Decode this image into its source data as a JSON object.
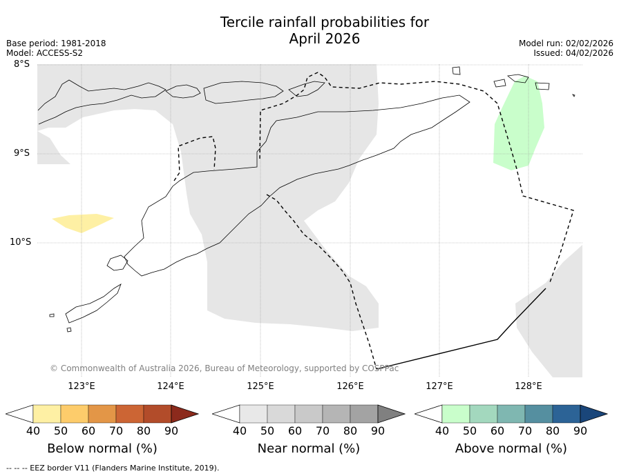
{
  "title_line1": "Tercile rainfall probabilities for",
  "title_line2": "April 2026",
  "base_period": "Base period: 1981-2018",
  "model": "Model: ACCESS-S2",
  "model_run": "Model run: 02/02/2026",
  "issued": "Issued: 04/02/2026",
  "lat_labels": [
    "8°S",
    "9°S",
    "10°S"
  ],
  "lon_labels": [
    "123°E",
    "124°E",
    "125°E",
    "126°E",
    "127°E",
    "128°E"
  ],
  "copyright": "© Commonwealth of Australia 2026, Bureau of Meteorology, supported by COSPPac",
  "colorbars": [
    {
      "label": "Below normal (%)",
      "ticks": [
        "40",
        "50",
        "60",
        "70",
        "80",
        "90"
      ],
      "colors": [
        "#ffffff",
        "#fef0a4",
        "#fdcc6b",
        "#e39647",
        "#cc6534",
        "#b24c2a",
        "#8c2a1c"
      ]
    },
    {
      "label": "Near normal (%)",
      "ticks": [
        "40",
        "50",
        "60",
        "70",
        "80",
        "90"
      ],
      "colors": [
        "#ffffff",
        "#e8e8e8",
        "#d9d9d9",
        "#c9c9c9",
        "#b5b5b5",
        "#a3a3a3",
        "#808080"
      ]
    },
    {
      "label": "Above normal (%)",
      "ticks": [
        "40",
        "50",
        "60",
        "70",
        "80",
        "90"
      ],
      "colors": [
        "#ffffff",
        "#c9fecb",
        "#a3d8be",
        "#7fb7b1",
        "#558fa0",
        "#2c6396",
        "#1a467a"
      ]
    }
  ],
  "footnote": "--  --  -- EEZ border V11 (Flanders Marine Institute, 2019).",
  "colors": {
    "near_normal_shade": "#e6e6e6",
    "below_normal_shade": "#fef0a4",
    "above_normal_shade": "#c9fecb",
    "copyright_text": "#808080"
  }
}
